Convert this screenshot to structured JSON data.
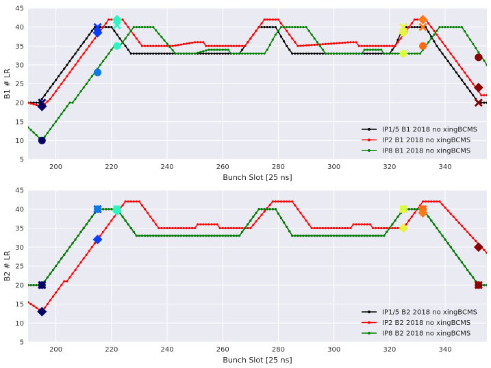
{
  "chart_data": [
    {
      "type": "line",
      "xlabel": "Bunch Slot [25 ns]",
      "ylabel": "B1 # LR",
      "xlim": [
        190,
        355
      ],
      "ylim": [
        5,
        45
      ],
      "xticks": [
        200,
        220,
        240,
        260,
        280,
        300,
        320,
        340
      ],
      "yticks": [
        5,
        10,
        15,
        20,
        25,
        30,
        35,
        40,
        45
      ],
      "grid": true,
      "legend_position": "lower-right",
      "series": [
        {
          "name": "IP1/5 B1 2018 no xingBCMS",
          "color": "#000000",
          "points": [
            [
              190,
              20
            ],
            [
              194,
              20
            ],
            [
              204,
              30
            ],
            [
              214,
              40
            ],
            [
              220,
              40
            ],
            [
              222,
              38
            ],
            [
              227,
              33
            ],
            [
              241,
              33
            ],
            [
              266,
              33
            ],
            [
              270,
              37
            ],
            [
              273,
              40
            ],
            [
              279,
              40
            ],
            [
              283,
              35
            ],
            [
              285,
              33
            ],
            [
              309,
              33
            ],
            [
              320,
              33
            ],
            [
              322,
              35
            ],
            [
              325,
              40
            ],
            [
              333,
              40
            ],
            [
              337,
              35
            ],
            [
              352,
              20
            ],
            [
              355,
              20
            ]
          ]
        },
        {
          "name": "IP2 B1 2018 no xingBCMS",
          "color": "#ff0000",
          "points": [
            [
              190,
              20
            ],
            [
              195,
              19
            ],
            [
              198,
              21
            ],
            [
              219,
              42
            ],
            [
              224,
              42
            ],
            [
              229,
              37
            ],
            [
              231,
              35
            ],
            [
              242,
              35
            ],
            [
              250,
              36
            ],
            [
              253,
              36
            ],
            [
              254,
              35
            ],
            [
              268,
              35
            ],
            [
              275,
              42
            ],
            [
              280,
              42
            ],
            [
              285,
              37
            ],
            [
              287,
              35
            ],
            [
              306,
              36
            ],
            [
              308,
              36
            ],
            [
              309,
              35
            ],
            [
              322,
              35
            ],
            [
              325,
              38
            ],
            [
              329,
              42
            ],
            [
              333,
              42
            ],
            [
              353,
              22
            ],
            [
              355,
              22
            ]
          ]
        },
        {
          "name": "IP8 B1 2018 no xingBCMS",
          "color": "#008000",
          "points": [
            [
              190,
              13.5
            ],
            [
              195,
              10
            ],
            [
              205,
              20
            ],
            [
              206,
              20
            ],
            [
              221,
              35
            ],
            [
              223,
              35
            ],
            [
              226,
              38
            ],
            [
              228,
              40
            ],
            [
              235,
              40
            ],
            [
              243,
              33
            ],
            [
              250,
              33
            ],
            [
              255,
              34
            ],
            [
              262,
              34
            ],
            [
              263,
              33
            ],
            [
              275,
              33
            ],
            [
              276,
              34
            ],
            [
              279,
              38
            ],
            [
              281,
              40
            ],
            [
              290,
              40
            ],
            [
              297,
              33
            ],
            [
              310,
              33
            ],
            [
              311,
              34
            ],
            [
              317,
              34
            ],
            [
              318,
              33
            ],
            [
              322,
              33
            ],
            [
              331,
              33
            ],
            [
              338,
              40
            ],
            [
              346,
              40
            ],
            [
              355,
              30
            ]
          ]
        }
      ],
      "markers": [
        {
          "shape": "x",
          "x": 195,
          "y": 20,
          "color": "#000066"
        },
        {
          "shape": "diamond",
          "x": 195,
          "y": 19,
          "color": "#000066"
        },
        {
          "shape": "circle",
          "x": 195,
          "y": 10,
          "color": "#000066"
        },
        {
          "shape": "x",
          "x": 215,
          "y": 40,
          "color": "#0a3cff"
        },
        {
          "shape": "diamond",
          "x": 215,
          "y": 38.5,
          "color": "#0a3cff"
        },
        {
          "shape": "circle",
          "x": 215,
          "y": 28,
          "color": "#0a7ae8"
        },
        {
          "shape": "diamond",
          "x": 222,
          "y": 42,
          "color": "#2ff5c2"
        },
        {
          "shape": "x",
          "x": 222,
          "y": 40.5,
          "color": "#2ff5c2"
        },
        {
          "shape": "circle",
          "x": 222,
          "y": 35,
          "color": "#2ff5c2"
        },
        {
          "shape": "x",
          "x": 325,
          "y": 40,
          "color": "#e8f53a"
        },
        {
          "shape": "diamond",
          "x": 325,
          "y": 38.5,
          "color": "#e8f53a"
        },
        {
          "shape": "circle",
          "x": 325,
          "y": 33,
          "color": "#d9ff3a"
        },
        {
          "shape": "diamond",
          "x": 332,
          "y": 42,
          "color": "#ff7a1a"
        },
        {
          "shape": "x",
          "x": 332,
          "y": 40,
          "color": "#ff7a1a"
        },
        {
          "shape": "circle",
          "x": 332,
          "y": 35,
          "color": "#ff6a10"
        },
        {
          "shape": "circle",
          "x": 352,
          "y": 32,
          "color": "#8b0000"
        },
        {
          "shape": "diamond",
          "x": 352,
          "y": 24,
          "color": "#8b0000"
        },
        {
          "shape": "x",
          "x": 352,
          "y": 20,
          "color": "#8b0000"
        }
      ]
    },
    {
      "type": "line",
      "xlabel": "Bunch Slot [25 ns]",
      "ylabel": "B2 # LR",
      "xlim": [
        190,
        355
      ],
      "ylim": [
        5,
        45
      ],
      "xticks": [
        200,
        220,
        240,
        260,
        280,
        300,
        320,
        340
      ],
      "yticks": [
        5,
        10,
        15,
        20,
        25,
        30,
        35,
        40,
        45
      ],
      "grid": true,
      "legend_position": "lower-right",
      "series": [
        {
          "name": "IP1/5 B2 2018 no xingBCMS",
          "color": "#000000",
          "points": [
            [
              190,
              20
            ],
            [
              195,
              20
            ],
            [
              215,
              40
            ],
            [
              222,
              40
            ],
            [
              229,
              33
            ],
            [
              266,
              33
            ],
            [
              270,
              37
            ],
            [
              273,
              40
            ],
            [
              279,
              40
            ],
            [
              285,
              33
            ],
            [
              309,
              33
            ],
            [
              318,
              33
            ],
            [
              325,
              40
            ],
            [
              332,
              40
            ],
            [
              352,
              20
            ],
            [
              355,
              20
            ]
          ]
        },
        {
          "name": "IP2 B2 2018 no xingBCMS",
          "color": "#ff0000",
          "points": [
            [
              190,
              15.5
            ],
            [
              195,
              13
            ],
            [
              202,
              20
            ],
            [
              203,
              21
            ],
            [
              204,
              21
            ],
            [
              215,
              32
            ],
            [
              225,
              42
            ],
            [
              230,
              42
            ],
            [
              237,
              35
            ],
            [
              250,
              35
            ],
            [
              251,
              36
            ],
            [
              258,
              36
            ],
            [
              259,
              35
            ],
            [
              270,
              35
            ],
            [
              278,
              42
            ],
            [
              285,
              42
            ],
            [
              292,
              35
            ],
            [
              306,
              35
            ],
            [
              307,
              36
            ],
            [
              313,
              36
            ],
            [
              314,
              35
            ],
            [
              325,
              35
            ],
            [
              332,
              42
            ],
            [
              338,
              42
            ],
            [
              353,
              30
            ],
            [
              355,
              28.5
            ]
          ]
        },
        {
          "name": "IP8 B2 2018 no xingBCMS",
          "color": "#008000",
          "points": [
            [
              190,
              20
            ],
            [
              195,
              20
            ],
            [
              215,
              40
            ],
            [
              222,
              40
            ],
            [
              229,
              33
            ],
            [
              266,
              33
            ],
            [
              270,
              37
            ],
            [
              273,
              40
            ],
            [
              279,
              40
            ],
            [
              285,
              33
            ],
            [
              309,
              33
            ],
            [
              318,
              33
            ],
            [
              325,
              40
            ],
            [
              332,
              40
            ],
            [
              352,
              20
            ],
            [
              355,
              20
            ]
          ]
        }
      ],
      "markers": [
        {
          "shape": "x",
          "x": 195,
          "y": 20,
          "color": "#000066"
        },
        {
          "shape": "circle",
          "x": 195,
          "y": 20,
          "color": "#000066"
        },
        {
          "shape": "diamond",
          "x": 195,
          "y": 13,
          "color": "#000066"
        },
        {
          "shape": "x",
          "x": 215,
          "y": 40,
          "color": "#0a3cff"
        },
        {
          "shape": "circle",
          "x": 215,
          "y": 40,
          "color": "#0a7ae8"
        },
        {
          "shape": "diamond",
          "x": 215,
          "y": 32,
          "color": "#0a3cff"
        },
        {
          "shape": "x",
          "x": 222,
          "y": 40,
          "color": "#2ff5c2"
        },
        {
          "shape": "circle",
          "x": 222,
          "y": 40,
          "color": "#2ff5c2"
        },
        {
          "shape": "diamond",
          "x": 222,
          "y": 39.5,
          "color": "#2ff5c2"
        },
        {
          "shape": "x",
          "x": 325,
          "y": 40,
          "color": "#e8f53a"
        },
        {
          "shape": "circle",
          "x": 325,
          "y": 40,
          "color": "#d9ff3a"
        },
        {
          "shape": "diamond",
          "x": 325,
          "y": 35,
          "color": "#e8f53a"
        },
        {
          "shape": "x",
          "x": 332,
          "y": 40,
          "color": "#ff7a1a"
        },
        {
          "shape": "circle",
          "x": 332,
          "y": 40,
          "color": "#ff6a10"
        },
        {
          "shape": "diamond",
          "x": 332,
          "y": 39,
          "color": "#ff7a1a"
        },
        {
          "shape": "x",
          "x": 352,
          "y": 20,
          "color": "#8b0000"
        },
        {
          "shape": "circle",
          "x": 352,
          "y": 20,
          "color": "#8b0000"
        },
        {
          "shape": "diamond",
          "x": 352,
          "y": 30,
          "color": "#8b0000"
        }
      ]
    }
  ]
}
